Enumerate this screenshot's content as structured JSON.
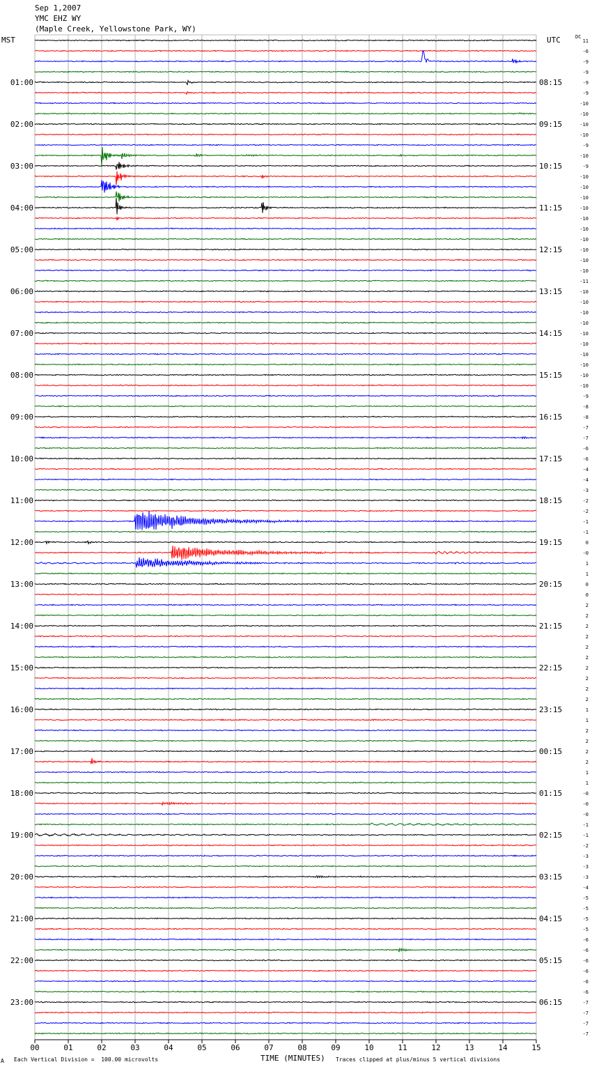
{
  "header": {
    "date": "Sep 1,2007",
    "station": "YMC EHZ WY",
    "location": "(Maple Creek, Yellowstone Park, WY)"
  },
  "left_tz": "MST",
  "right_tz": "UTC",
  "dc_label": "DC",
  "footer": {
    "scale_note": "Each Vertical Division =  100.00 microvolts",
    "x_title": "TIME (MINUTES)",
    "clip_note": "Traces clipped at plus/minus 5 vertical divisions",
    "corner_mark": "A"
  },
  "colors": {
    "trace_cycle": [
      "#000000",
      "#ff0000",
      "#0000ff",
      "#007000"
    ],
    "grid": "#a0a0a0"
  },
  "chart_data": {
    "type": "line",
    "title": "Sep 1,2007",
    "subtitle": "YMC EHZ WY (Maple Creek, Yellowstone Park, WY)",
    "xlabel": "TIME (MINUTES)",
    "xlim": [
      0,
      15
    ],
    "x_ticks": [
      "00",
      "01",
      "02",
      "03",
      "04",
      "05",
      "06",
      "07",
      "08",
      "09",
      "10",
      "11",
      "12",
      "13",
      "14",
      "15"
    ],
    "left_hour_labels": [
      "01:00",
      "02:00",
      "03:00",
      "04:00",
      "05:00",
      "06:00",
      "07:00",
      "08:00",
      "09:00",
      "10:00",
      "11:00",
      "12:00",
      "13:00",
      "14:00",
      "15:00",
      "16:00",
      "17:00",
      "18:00",
      "19:00",
      "20:00",
      "21:00",
      "22:00",
      "23:00"
    ],
    "right_hour_labels": [
      "08:15",
      "09:15",
      "10:15",
      "11:15",
      "12:15",
      "13:15",
      "14:15",
      "15:15",
      "16:15",
      "17:15",
      "18:15",
      "19:15",
      "20:15",
      "21:15",
      "22:15",
      "23:15",
      "00:15",
      "01:15",
      "02:15",
      "03:15",
      "04:15",
      "05:15",
      "06:15"
    ],
    "trace_count": 96,
    "minutes_per_trace": 15,
    "dc_offsets": [
      "11",
      "-6",
      "-9",
      "-9",
      "-9",
      "-9",
      "-10",
      "-10",
      "-10",
      "-10",
      "-9",
      "-10",
      "-9",
      "-10",
      "-10",
      "-10",
      "-10",
      "-10",
      "-10",
      "-10",
      "-10",
      "-10",
      "-10",
      "-11",
      "-10",
      "-10",
      "-10",
      "-10",
      "-10",
      "-10",
      "-10",
      "-10",
      "-10",
      "-10",
      "-9",
      "-8",
      "-8",
      "-7",
      "-7",
      "-6",
      "-6",
      "-4",
      "-4",
      "-3",
      "-2",
      "-2",
      "-1",
      "-1",
      "0",
      "-0",
      "1",
      "1",
      "0",
      "0",
      "2",
      "2",
      "2",
      "2",
      "2",
      "2",
      "2",
      "2",
      "2",
      "2",
      "1",
      "1",
      "2",
      "2",
      "2",
      "2",
      "1",
      "1",
      "-0",
      "-0",
      "-0",
      "-1",
      "-1",
      "-2",
      "-3",
      "-3",
      "-3",
      "-4",
      "-5",
      "-5",
      "-5",
      "-5",
      "-6",
      "-6",
      "-6",
      "-6",
      "-6",
      "-6",
      "-7",
      "-7",
      "-7",
      "-7"
    ],
    "events": [
      {
        "trace": 2,
        "minute": 11.6,
        "amplitude": 6.0,
        "decay": 0.08,
        "period": 0.05,
        "onesided": true
      },
      {
        "trace": 2,
        "minute": 14.3,
        "amplitude": 1.6,
        "decay": 0.1,
        "period": 0.05
      },
      {
        "trace": 4,
        "minute": 4.55,
        "amplitude": 1.2,
        "decay": 0.12,
        "period": 0.06
      },
      {
        "trace": 5,
        "minute": 4.55,
        "amplitude": 1.5,
        "decay": 0.05,
        "period": 0.05
      },
      {
        "trace": 7,
        "minute": 14.5,
        "amplitude": 0.35,
        "decay": 0.15,
        "period": 0.06
      },
      {
        "trace": 11,
        "minute": 2.6,
        "amplitude": 1.3,
        "decay": 0.3,
        "period": 0.06
      },
      {
        "trace": 11,
        "minute": 4.8,
        "amplitude": 0.6,
        "decay": 0.2,
        "period": 0.06
      },
      {
        "trace": 11,
        "minute": 6.3,
        "amplitude": 0.5,
        "decay": 0.25,
        "period": 0.06
      },
      {
        "trace": 11,
        "minute": 10.9,
        "amplitude": 0.5,
        "decay": 0.1,
        "period": 0.06
      },
      {
        "trace": 11,
        "minute": 2.0,
        "amplitude": 5.0,
        "decay": 0.15,
        "period": 0.05
      },
      {
        "trace": 12,
        "minute": 2.45,
        "amplitude": 2.0,
        "decay": 0.2,
        "period": 0.05
      },
      {
        "trace": 13,
        "minute": 2.45,
        "amplitude": 4.0,
        "decay": 0.15,
        "period": 0.05
      },
      {
        "trace": 13,
        "minute": 6.8,
        "amplitude": 0.9,
        "decay": 0.08,
        "period": 0.05
      },
      {
        "trace": 14,
        "minute": 2.0,
        "amplitude": 5.0,
        "decay": 0.2,
        "period": 0.05
      },
      {
        "trace": 15,
        "minute": 2.45,
        "amplitude": 3.5,
        "decay": 0.15,
        "period": 0.05
      },
      {
        "trace": 16,
        "minute": 2.45,
        "amplitude": 3.5,
        "decay": 0.1,
        "period": 0.05
      },
      {
        "trace": 16,
        "minute": 6.8,
        "amplitude": 4.0,
        "decay": 0.1,
        "period": 0.05
      },
      {
        "trace": 17,
        "minute": 2.45,
        "amplitude": 1.5,
        "decay": 0.05,
        "period": 0.05
      },
      {
        "trace": 35,
        "minute": 14.0,
        "amplitude": 0.3,
        "decay": 0.1,
        "period": 0.06
      },
      {
        "trace": 38,
        "minute": 14.6,
        "amplitude": 0.6,
        "decay": 0.15,
        "period": 0.06
      },
      {
        "trace": 46,
        "minute": 3.0,
        "amplitude": 5.0,
        "decay": 1.6,
        "period": 0.06
      },
      {
        "trace": 50,
        "minute": 3.05,
        "amplitude": 2.2,
        "decay": 1.8,
        "period": 0.06
      },
      {
        "trace": 48,
        "minute": 0.35,
        "amplitude": 0.6,
        "decay": 0.08,
        "period": 0.06
      },
      {
        "trace": 48,
        "minute": 1.6,
        "amplitude": 0.9,
        "decay": 0.1,
        "period": 0.06
      },
      {
        "trace": 49,
        "minute": 4.1,
        "amplitude": 3.0,
        "decay": 1.8,
        "period": 0.06
      },
      {
        "trace": 50,
        "minute": 0.1,
        "amplitude": 0.3,
        "decay": 2.0,
        "period": 0.25
      },
      {
        "trace": 49,
        "minute": 12.0,
        "amplitude": 0.5,
        "decay": 1.2,
        "period": 0.18
      },
      {
        "trace": 50,
        "minute": 12.6,
        "amplitude": 0.25,
        "decay": 0.8,
        "period": 0.15
      },
      {
        "trace": 65,
        "minute": 10.1,
        "amplitude": 0.35,
        "decay": 0.3,
        "period": 0.06
      },
      {
        "trace": 69,
        "minute": 1.7,
        "amplitude": 1.8,
        "decay": 0.12,
        "period": 0.05
      },
      {
        "trace": 73,
        "minute": 3.8,
        "amplitude": 0.5,
        "decay": 0.9,
        "period": 0.06
      },
      {
        "trace": 75,
        "minute": 10.0,
        "amplitude": 0.4,
        "decay": 4.0,
        "period": 0.28
      },
      {
        "trace": 76,
        "minute": 0.0,
        "amplitude": 0.4,
        "decay": 4.0,
        "period": 0.28
      },
      {
        "trace": 80,
        "minute": 8.4,
        "amplitude": 0.8,
        "decay": 0.3,
        "period": 0.06
      },
      {
        "trace": 80,
        "minute": 9.6,
        "amplitude": 0.3,
        "decay": 0.2,
        "period": 0.06
      },
      {
        "trace": 87,
        "minute": 10.9,
        "amplitude": 0.8,
        "decay": 0.25,
        "period": 0.06
      }
    ]
  }
}
